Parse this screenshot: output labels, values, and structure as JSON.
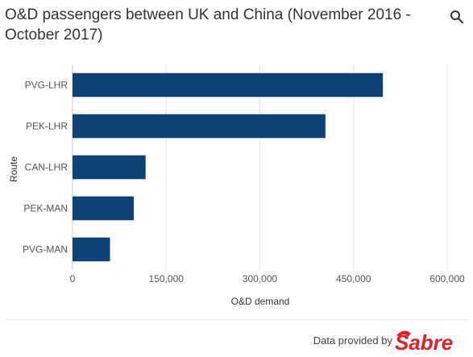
{
  "header": {
    "title": "O&D passengers between UK and China (November 2016 - October 2017)",
    "search_icon": "search-icon"
  },
  "footer": {
    "credit": "Data provided by",
    "logo_text": "Sabre",
    "logo_color": "#e41f26"
  },
  "chart_data": {
    "type": "bar",
    "orientation": "horizontal",
    "categories": [
      "PVG-LHR",
      "PEK-LHR",
      "CAN-LHR",
      "PEK-MAN",
      "PVG-MAN"
    ],
    "values": [
      497000,
      405000,
      117000,
      98000,
      60000
    ],
    "xlabel": "O&D demand",
    "ylabel": "Route",
    "xlim": [
      0,
      600000
    ],
    "xticks": [
      0,
      150000,
      300000,
      450000,
      600000
    ],
    "xtick_labels": [
      "0",
      "150,000",
      "300,000",
      "450,000",
      "600,000"
    ],
    "bar_color": "#0e4175",
    "grid": "vertical",
    "legend": "none"
  }
}
